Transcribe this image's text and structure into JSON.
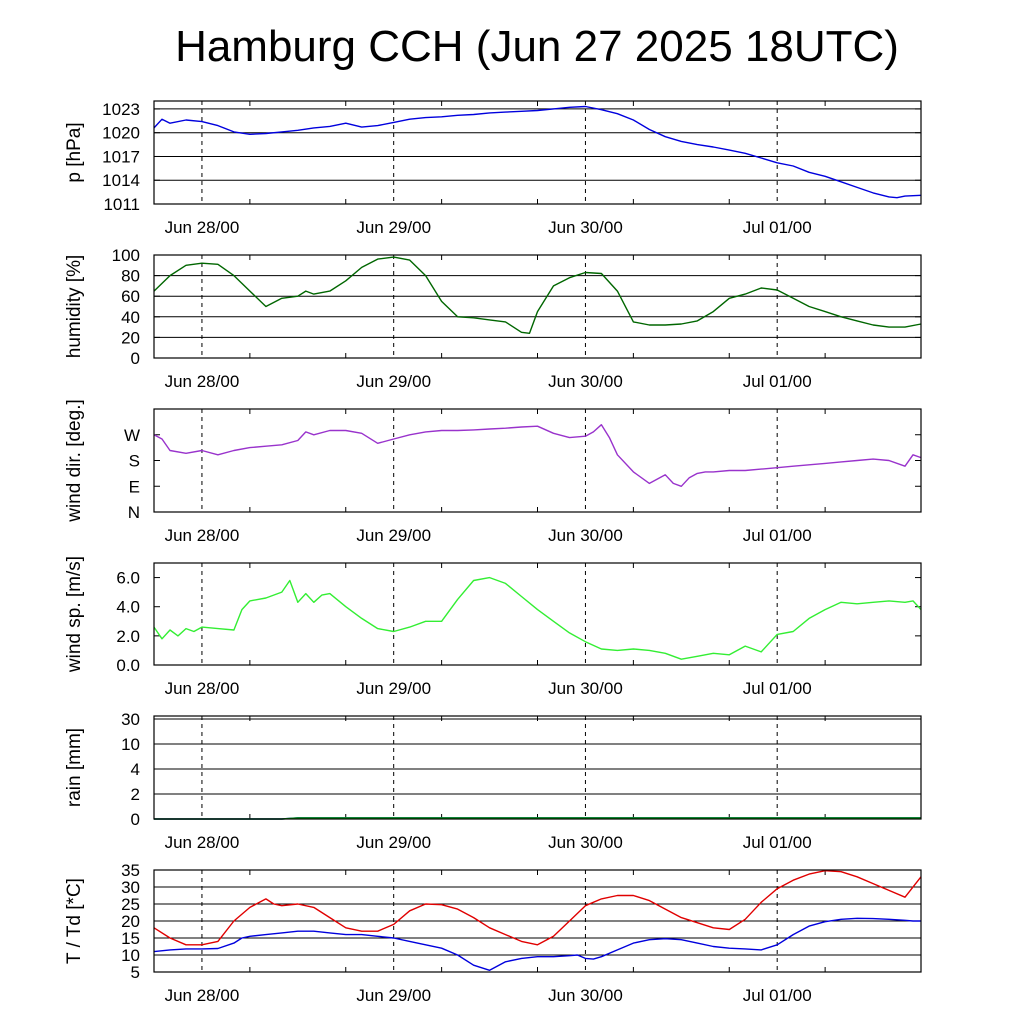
{
  "title": "Hamburg CCH (Jun 27 2025 18UTC)",
  "chart_data": [
    {
      "type": "line",
      "ylabel": "p [hPa]",
      "ylim": [
        1011,
        1024
      ],
      "yticks": [
        1023,
        1020,
        1017,
        1014,
        1011
      ],
      "ytick_labels": [
        "1023",
        "1020",
        "1017",
        "1014",
        "1011"
      ],
      "grid": true,
      "x_hours": [
        0,
        1,
        2,
        4,
        6,
        8,
        10,
        12,
        14,
        16,
        18,
        20,
        22,
        24,
        26,
        28,
        30,
        32,
        34,
        36,
        38,
        40,
        42,
        44,
        46,
        48,
        50,
        52,
        54,
        56,
        58,
        60,
        62,
        64,
        66,
        68,
        70,
        72,
        74,
        76,
        78,
        80,
        82,
        84,
        86,
        88,
        90,
        92,
        93,
        94,
        96
      ],
      "series": [
        {
          "color": "#0000dd",
          "values": [
            1020.6,
            1021.7,
            1021.2,
            1021.6,
            1021.4,
            1020.9,
            1020.1,
            1019.8,
            1019.9,
            1020.1,
            1020.3,
            1020.6,
            1020.8,
            1021.2,
            1020.7,
            1020.9,
            1021.3,
            1021.7,
            1021.9,
            1022.0,
            1022.2,
            1022.3,
            1022.5,
            1022.6,
            1022.7,
            1022.8,
            1023.0,
            1023.2,
            1023.3,
            1022.9,
            1022.4,
            1021.6,
            1020.4,
            1019.5,
            1018.9,
            1018.5,
            1018.2,
            1017.8,
            1017.4,
            1016.8,
            1016.2,
            1015.8,
            1015.0,
            1014.5,
            1013.8,
            1013.1,
            1012.4,
            1011.9,
            1011.8,
            1012.0,
            1012.1
          ]
        }
      ]
    },
    {
      "type": "line",
      "ylabel": "humidity [%]",
      "ylim": [
        0,
        100
      ],
      "yticks": [
        100,
        80,
        60,
        40,
        20,
        0
      ],
      "ytick_labels": [
        "100",
        "80",
        "60",
        "40",
        "20",
        "0"
      ],
      "grid": true,
      "x_hours": [
        0,
        2,
        4,
        6,
        8,
        10,
        12,
        14,
        16,
        18,
        19,
        20,
        22,
        24,
        26,
        28,
        30,
        32,
        34,
        36,
        38,
        40,
        42,
        44,
        46,
        47,
        48,
        50,
        52,
        54,
        56,
        58,
        60,
        62,
        64,
        66,
        68,
        70,
        72,
        74,
        76,
        78,
        80,
        82,
        84,
        86,
        88,
        90,
        92,
        94,
        96
      ],
      "series": [
        {
          "color": "#006600",
          "values": [
            65,
            80,
            90,
            92,
            91,
            80,
            65,
            50,
            58,
            60,
            65,
            62,
            65,
            75,
            88,
            96,
            98,
            95,
            80,
            55,
            40,
            39,
            37,
            35,
            25,
            24,
            45,
            70,
            78,
            83,
            82,
            65,
            35,
            32,
            32,
            33,
            36,
            45,
            58,
            62,
            68,
            66,
            58,
            50,
            45,
            40,
            36,
            32,
            30,
            30,
            33
          ]
        }
      ]
    },
    {
      "type": "line",
      "ylabel": "wind dir. [deg.]",
      "ylim": [
        0,
        360
      ],
      "yticks": [
        270,
        180,
        90,
        0
      ],
      "ytick_labels": [
        "W",
        "S",
        "E",
        "N"
      ],
      "grid": false,
      "x_hours": [
        0,
        1,
        2,
        4,
        6,
        8,
        10,
        12,
        14,
        16,
        18,
        19,
        20,
        22,
        24,
        26,
        28,
        30,
        32,
        34,
        36,
        38,
        40,
        42,
        44,
        46,
        48,
        50,
        52,
        54,
        55,
        56,
        57,
        58,
        60,
        62,
        64,
        65,
        66,
        67,
        68,
        69,
        70,
        72,
        74,
        76,
        78,
        80,
        82,
        84,
        86,
        88,
        90,
        92,
        94,
        95,
        96
      ],
      "series": [
        {
          "color": "#9933cc",
          "values": [
            270,
            255,
            215,
            205,
            215,
            200,
            215,
            225,
            230,
            235,
            250,
            280,
            270,
            285,
            285,
            275,
            240,
            255,
            270,
            280,
            285,
            285,
            287,
            290,
            293,
            297,
            300,
            275,
            260,
            265,
            280,
            305,
            260,
            200,
            140,
            100,
            130,
            100,
            90,
            120,
            135,
            140,
            140,
            145,
            145,
            150,
            155,
            160,
            165,
            170,
            175,
            180,
            185,
            180,
            160,
            200,
            190
          ]
        }
      ]
    },
    {
      "type": "line",
      "ylabel": "wind sp. [m/s]",
      "ylim": [
        0,
        7
      ],
      "yticks": [
        6,
        4,
        2,
        0
      ],
      "ytick_labels": [
        "6.0",
        "4.0",
        "2.0",
        "0.0"
      ],
      "grid": false,
      "x_hours": [
        0,
        1,
        2,
        3,
        4,
        5,
        6,
        8,
        10,
        11,
        12,
        14,
        16,
        17,
        18,
        19,
        20,
        21,
        22,
        24,
        26,
        28,
        30,
        32,
        34,
        36,
        38,
        40,
        42,
        44,
        46,
        48,
        50,
        52,
        54,
        56,
        58,
        60,
        62,
        64,
        66,
        68,
        70,
        72,
        74,
        76,
        78,
        80,
        82,
        84,
        86,
        88,
        90,
        92,
        94,
        95,
        96
      ],
      "series": [
        {
          "color": "#33ee33",
          "values": [
            2.6,
            1.8,
            2.4,
            2.0,
            2.5,
            2.3,
            2.6,
            2.5,
            2.4,
            3.8,
            4.4,
            4.6,
            5.0,
            5.8,
            4.3,
            4.9,
            4.3,
            4.8,
            4.9,
            4.0,
            3.2,
            2.5,
            2.3,
            2.6,
            3.0,
            3.0,
            4.5,
            5.8,
            6.0,
            5.6,
            4.7,
            3.8,
            3.0,
            2.2,
            1.6,
            1.1,
            1.0,
            1.1,
            1.0,
            0.8,
            0.4,
            0.6,
            0.8,
            0.7,
            1.3,
            0.9,
            2.1,
            2.3,
            3.2,
            3.8,
            4.3,
            4.2,
            4.3,
            4.4,
            4.3,
            4.4,
            3.8
          ]
        }
      ]
    },
    {
      "type": "line",
      "ylabel": "rain [mm]",
      "ylim": [
        0,
        30
      ],
      "yticks": [
        30,
        10,
        4,
        2,
        0
      ],
      "ytick_labels": [
        "30",
        "10",
        "4",
        "2",
        "0"
      ],
      "grid": true,
      "x_hours": [
        0,
        16,
        18,
        96
      ],
      "series": [
        {
          "color": "#0000dd",
          "values": [
            0,
            0,
            0.1,
            0.1
          ]
        },
        {
          "color": "#009900",
          "values": [
            0,
            0,
            0.08,
            0.08
          ]
        }
      ]
    },
    {
      "type": "line",
      "ylabel": "T / Td [*C]",
      "ylim": [
        5,
        35
      ],
      "yticks": [
        35,
        30,
        25,
        20,
        15,
        10,
        5
      ],
      "ytick_labels": [
        "35",
        "30",
        "25",
        "20",
        "15",
        "10",
        "5"
      ],
      "grid": true,
      "series": [
        {
          "color": "#e00000",
          "x_hours": [
            0,
            2,
            4,
            6,
            8,
            10,
            12,
            14,
            15,
            16,
            18,
            20,
            22,
            24,
            26,
            28,
            30,
            32,
            34,
            36,
            38,
            40,
            42,
            44,
            46,
            48,
            50,
            52,
            54,
            56,
            58,
            60,
            62,
            64,
            66,
            68,
            70,
            72,
            74,
            76,
            78,
            80,
            82,
            84,
            86,
            88,
            90,
            92,
            94,
            96
          ],
          "values": [
            18,
            15,
            13,
            13,
            14,
            20,
            24,
            26.5,
            25,
            24.5,
            25,
            24,
            21,
            18,
            17,
            17,
            19,
            23,
            25,
            24.8,
            23.5,
            21,
            18,
            16,
            14,
            13,
            15.5,
            20,
            24.5,
            26.5,
            27.5,
            27.5,
            26,
            23.5,
            21,
            19.5,
            18,
            17.5,
            20.5,
            25.5,
            29.5,
            32,
            33.8,
            34.8,
            34.5,
            33,
            31,
            29,
            27,
            33
          ]
        },
        {
          "color": "#0000dd",
          "x_hours": [
            0,
            2,
            4,
            6,
            8,
            10,
            11,
            12,
            14,
            16,
            18,
            20,
            22,
            24,
            26,
            28,
            30,
            32,
            34,
            36,
            38,
            40,
            42,
            44,
            46,
            48,
            50,
            52,
            53,
            54,
            55,
            56,
            58,
            60,
            62,
            64,
            66,
            68,
            70,
            72,
            74,
            76,
            78,
            80,
            82,
            84,
            86,
            88,
            90,
            92,
            94,
            95,
            96
          ],
          "values": [
            11,
            11.5,
            11.8,
            11.8,
            11.9,
            13.5,
            15,
            15.5,
            16,
            16.5,
            17,
            17,
            16.5,
            16,
            16,
            15.5,
            15,
            14,
            13,
            12,
            10,
            7,
            5.5,
            8,
            9,
            9.5,
            9.5,
            9.8,
            10,
            9,
            8.8,
            9.5,
            11.5,
            13.5,
            14.5,
            14.8,
            14.5,
            13.5,
            12.5,
            12,
            11.8,
            11.5,
            13,
            16,
            18.5,
            19.8,
            20.5,
            20.8,
            20.7,
            20.5,
            20.2,
            20,
            20
          ]
        }
      ]
    }
  ],
  "x_axis": {
    "tick_labels": [
      "Jun 28/00",
      "Jun 29/00",
      "Jun 30/00",
      "Jul 01/00"
    ],
    "tick_hours": [
      6,
      30,
      54,
      78
    ],
    "range_hours": [
      0,
      96
    ]
  }
}
